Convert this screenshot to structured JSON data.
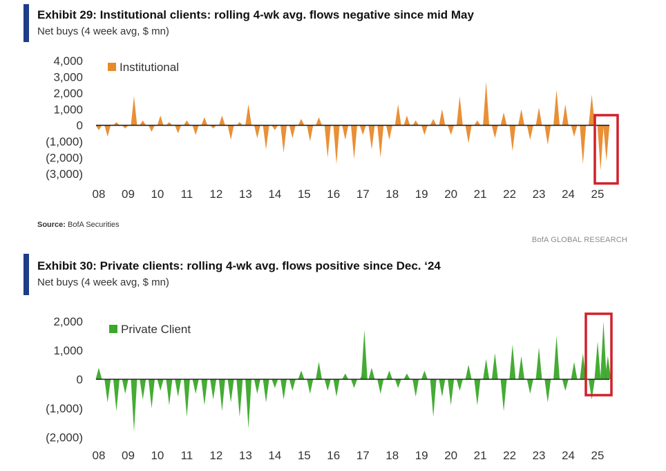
{
  "exhibit29": {
    "title": "Exhibit 29: Institutional clients: rolling 4-wk avg. flows negative since mid May",
    "subtitle": "Net buys (4 week avg, $ mn)",
    "source_label": "Source:",
    "source_value": "BofA Securities",
    "brand": "BofA GLOBAL RESEARCH"
  },
  "exhibit30": {
    "title": "Exhibit 30: Private clients: rolling 4-wk avg. flows positive since Dec. ‘24",
    "subtitle": "Net buys (4 week avg, $ mn)"
  },
  "chart_data": [
    {
      "type": "area",
      "title": "Exhibit 29: Institutional clients: rolling 4-wk avg. flows negative since mid May",
      "ylabel": "Net buys (4 week avg, $ mn)",
      "ylim": [
        -3000,
        4000
      ],
      "yticks": [
        4000,
        3000,
        2000,
        1000,
        0,
        -1000,
        -2000,
        -3000
      ],
      "ytick_labels": [
        "4,000",
        "3,000",
        "2,000",
        "1,000",
        "0",
        "(1,000)",
        "(2,000)",
        "(3,000)"
      ],
      "x_labels": [
        "08",
        "09",
        "10",
        "11",
        "12",
        "13",
        "14",
        "15",
        "16",
        "17",
        "18",
        "19",
        "20",
        "21",
        "22",
        "23",
        "24",
        "25"
      ],
      "color": "#e8892b",
      "highlight_box_color": "#d0202a",
      "grid": false,
      "legend_position": "top-left",
      "series": [
        {
          "name": "Institutional",
          "x": [
            2008.0,
            2008.3,
            2008.6,
            2008.9,
            2009.2,
            2009.5,
            2009.8,
            2010.1,
            2010.4,
            2010.7,
            2011.0,
            2011.3,
            2011.6,
            2011.9,
            2012.2,
            2012.5,
            2012.8,
            2013.1,
            2013.4,
            2013.7,
            2014.0,
            2014.3,
            2014.6,
            2014.9,
            2015.2,
            2015.5,
            2015.8,
            2016.1,
            2016.4,
            2016.7,
            2017.0,
            2017.3,
            2017.6,
            2017.9,
            2018.2,
            2018.5,
            2018.8,
            2019.1,
            2019.4,
            2019.7,
            2020.0,
            2020.3,
            2020.6,
            2020.9,
            2021.2,
            2021.5,
            2021.8,
            2022.1,
            2022.4,
            2022.7,
            2023.0,
            2023.3,
            2023.6,
            2023.9,
            2024.2,
            2024.5,
            2024.8,
            2025.1,
            2025.3
          ],
          "values": [
            -300,
            -700,
            200,
            -200,
            1800,
            300,
            -400,
            600,
            200,
            -500,
            300,
            -600,
            500,
            -200,
            600,
            -900,
            200,
            1300,
            -800,
            -1500,
            -300,
            -1700,
            -800,
            400,
            -1000,
            500,
            -2000,
            -2400,
            -900,
            -2100,
            -600,
            -1500,
            -2000,
            -900,
            1300,
            600,
            300,
            -600,
            400,
            1000,
            -600,
            1800,
            -1100,
            300,
            2700,
            -800,
            800,
            -1600,
            1000,
            -900,
            1100,
            -1200,
            2200,
            1300,
            -700,
            -2400,
            1900,
            -2800,
            -2200
          ]
        }
      ]
    },
    {
      "type": "area",
      "title": "Exhibit 30: Private clients: rolling 4-wk avg. flows positive since Dec. ‘24",
      "ylabel": "Net buys (4 week avg, $ mn)",
      "ylim": [
        -2000,
        2000
      ],
      "yticks": [
        2000,
        1000,
        0,
        -1000,
        -2000
      ],
      "ytick_labels": [
        "2,000",
        "1,000",
        "0",
        "(1,000)",
        "(2,000)"
      ],
      "x_labels": [
        "08",
        "09",
        "10",
        "11",
        "12",
        "13",
        "14",
        "15",
        "16",
        "17",
        "18",
        "19",
        "20",
        "21",
        "22",
        "23",
        "24",
        "25"
      ],
      "color": "#3aa829",
      "highlight_box_color": "#d0202a",
      "grid": false,
      "legend_position": "top-left",
      "series": [
        {
          "name": "Private Client",
          "x": [
            2008.0,
            2008.3,
            2008.6,
            2008.9,
            2009.2,
            2009.5,
            2009.8,
            2010.1,
            2010.4,
            2010.7,
            2011.0,
            2011.3,
            2011.6,
            2011.9,
            2012.2,
            2012.5,
            2012.8,
            2013.1,
            2013.4,
            2013.7,
            2014.0,
            2014.3,
            2014.6,
            2014.9,
            2015.2,
            2015.5,
            2015.8,
            2016.1,
            2016.4,
            2016.7,
            2017.0,
            2017.05,
            2017.3,
            2017.6,
            2017.9,
            2018.2,
            2018.5,
            2018.8,
            2019.1,
            2019.4,
            2019.7,
            2020.0,
            2020.3,
            2020.6,
            2020.9,
            2021.2,
            2021.5,
            2021.8,
            2022.1,
            2022.4,
            2022.7,
            2023.0,
            2023.3,
            2023.6,
            2023.9,
            2024.2,
            2024.5,
            2024.8,
            2025.0,
            2025.2,
            2025.35
          ],
          "values": [
            400,
            -800,
            -1100,
            -500,
            -1800,
            -700,
            -1000,
            -400,
            -900,
            -600,
            -1300,
            -500,
            -900,
            -700,
            -1100,
            -800,
            -1300,
            -1700,
            -500,
            -800,
            -300,
            -700,
            -400,
            300,
            -500,
            600,
            -400,
            -600,
            200,
            -300,
            200,
            1700,
            400,
            -500,
            300,
            -300,
            200,
            -600,
            300,
            -1300,
            -600,
            -900,
            -400,
            500,
            -900,
            700,
            900,
            -1100,
            1200,
            800,
            -500,
            1100,
            -800,
            1500,
            -400,
            600,
            900,
            -700,
            1300,
            2000,
            800
          ]
        }
      ]
    }
  ]
}
